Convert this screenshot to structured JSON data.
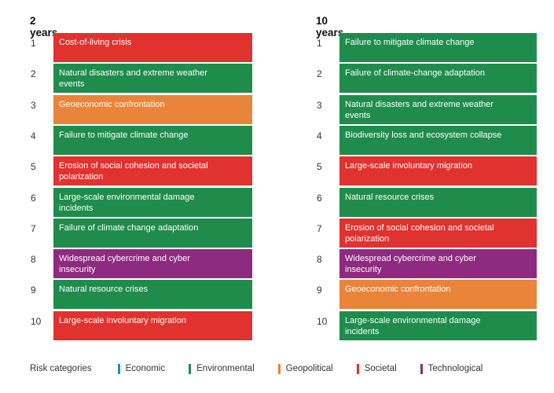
{
  "left": {
    "title": "2 years",
    "items": [
      {
        "rank": "1",
        "label": "Cost-of-living crisis",
        "category": "Societal"
      },
      {
        "rank": "2",
        "label": "Natural disasters and extreme weather events",
        "category": "Environmental"
      },
      {
        "rank": "3",
        "label": "Geoeconomic confrontation",
        "category": "Geopolitical"
      },
      {
        "rank": "4",
        "label": "Failure to mitigate climate change",
        "category": "Environmental"
      },
      {
        "rank": "5",
        "label": "Erosion of social cohesion and societal polarization",
        "category": "Societal"
      },
      {
        "rank": "6",
        "label": "Large-scale environmental damage incidents",
        "category": "Environmental"
      },
      {
        "rank": "7",
        "label": "Failure of climate change adaptation",
        "category": "Environmental"
      },
      {
        "rank": "8",
        "label": "Widespread cybercrime and cyber insecurity",
        "category": "Technological"
      },
      {
        "rank": "9",
        "label": "Natural resource crises",
        "category": "Environmental"
      },
      {
        "rank": "10",
        "label": "Large-scale involuntary migration",
        "category": "Societal"
      }
    ]
  },
  "right": {
    "title": "10 years",
    "items": [
      {
        "rank": "1",
        "label": "Failure to mitigate climate change",
        "category": "Environmental"
      },
      {
        "rank": "2",
        "label": "Failure of climate-change adaptation",
        "category": "Environmental"
      },
      {
        "rank": "3",
        "label": "Natural disasters and extreme weather events",
        "category": "Environmental"
      },
      {
        "rank": "4",
        "label": "Biodiversity loss and ecosystem collapse",
        "category": "Environmental"
      },
      {
        "rank": "5",
        "label": "Large-scale involuntary migration",
        "category": "Societal"
      },
      {
        "rank": "6",
        "label": "Natural resource crises",
        "category": "Environmental"
      },
      {
        "rank": "7",
        "label": "Erosion of social cohesion and societal polarization",
        "category": "Societal"
      },
      {
        "rank": "8",
        "label": "Widespread cybercrime and cyber insecurity",
        "category": "Technological"
      },
      {
        "rank": "9",
        "label": "Geoeconomic confrontation",
        "category": "Geopolitical"
      },
      {
        "rank": "10",
        "label": "Large-scale environmental damage incidents",
        "category": "Environmental"
      }
    ]
  },
  "legend": {
    "title": "Risk categories",
    "items": [
      {
        "label": "Economic",
        "color": "#1f8ac9"
      },
      {
        "label": "Environmental",
        "color": "#1f8c4c"
      },
      {
        "label": "Geopolitical",
        "color": "#e9843a"
      },
      {
        "label": "Societal",
        "color": "#e0322f"
      },
      {
        "label": "Technological",
        "color": "#8e2a7f"
      }
    ]
  }
}
